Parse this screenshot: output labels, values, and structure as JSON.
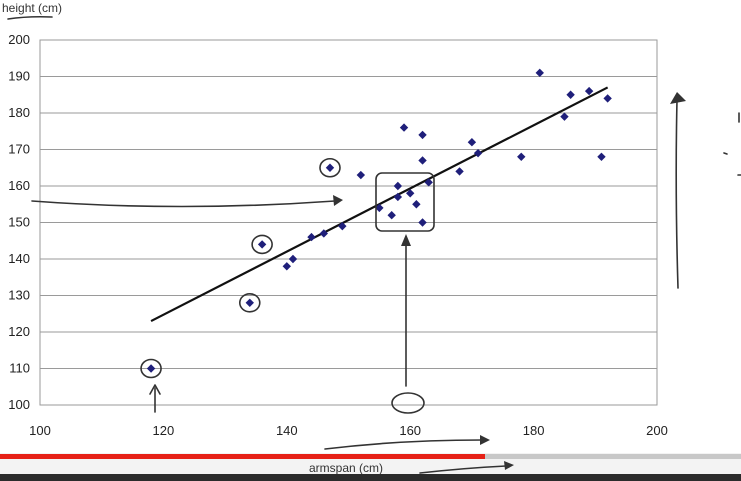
{
  "chart_data": {
    "type": "scatter",
    "xlabel": "armspan (cm)",
    "ylabel": "height (cm)",
    "xlim": [
      100,
      200
    ],
    "ylim": [
      100,
      200
    ],
    "xticks": [
      100,
      120,
      140,
      160,
      180,
      200
    ],
    "yticks": [
      100,
      110,
      120,
      130,
      140,
      150,
      160,
      170,
      180,
      190,
      200
    ],
    "grid": "horizontal",
    "marker_color": "#1f1f7a",
    "trendline": {
      "x": [
        118,
        192
      ],
      "y": [
        123,
        187
      ]
    },
    "points": [
      {
        "x": 118,
        "y": 110
      },
      {
        "x": 134,
        "y": 128
      },
      {
        "x": 136,
        "y": 144
      },
      {
        "x": 140,
        "y": 138
      },
      {
        "x": 141,
        "y": 140
      },
      {
        "x": 144,
        "y": 146
      },
      {
        "x": 146,
        "y": 147
      },
      {
        "x": 147,
        "y": 165
      },
      {
        "x": 149,
        "y": 149
      },
      {
        "x": 152,
        "y": 163
      },
      {
        "x": 155,
        "y": 154
      },
      {
        "x": 157,
        "y": 152
      },
      {
        "x": 158,
        "y": 160
      },
      {
        "x": 158,
        "y": 157
      },
      {
        "x": 159,
        "y": 176
      },
      {
        "x": 160,
        "y": 158
      },
      {
        "x": 161,
        "y": 155
      },
      {
        "x": 162,
        "y": 174
      },
      {
        "x": 162,
        "y": 167
      },
      {
        "x": 162,
        "y": 150
      },
      {
        "x": 163,
        "y": 161
      },
      {
        "x": 168,
        "y": 164
      },
      {
        "x": 170,
        "y": 172
      },
      {
        "x": 171,
        "y": 169
      },
      {
        "x": 178,
        "y": 168
      },
      {
        "x": 181,
        "y": 191
      },
      {
        "x": 185,
        "y": 179
      },
      {
        "x": 186,
        "y": 185
      },
      {
        "x": 189,
        "y": 186
      },
      {
        "x": 191,
        "y": 168
      },
      {
        "x": 192,
        "y": 184
      }
    ],
    "highlighted_points": [
      0,
      1,
      2,
      7
    ]
  },
  "player": {
    "progress_fraction": 0.655,
    "progress_color": "#e62117"
  }
}
